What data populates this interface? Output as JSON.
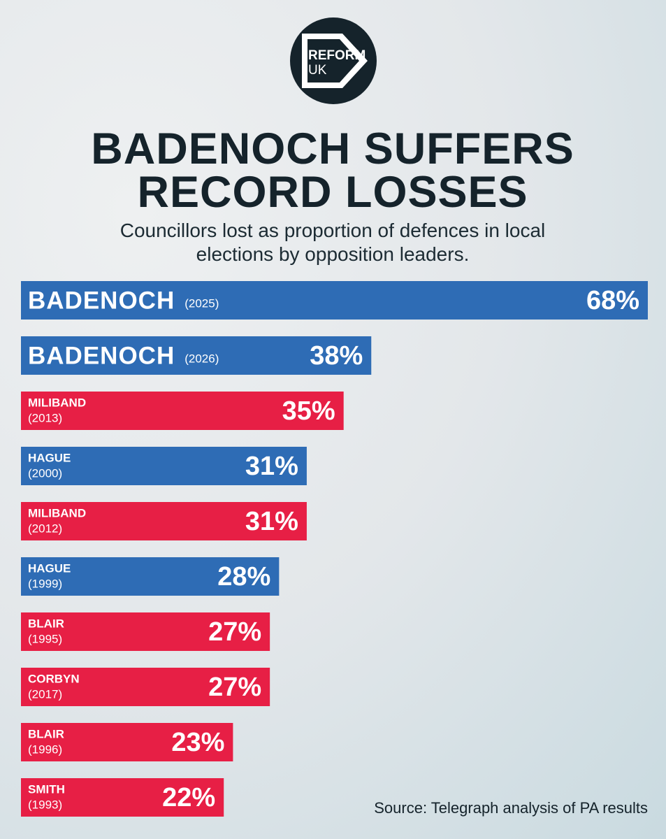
{
  "logo": {
    "line1": "REFORM",
    "line2": "UK"
  },
  "chart_data": {
    "type": "bar",
    "orientation": "horizontal",
    "title": "BADENOCH SUFFERS RECORD LOSSES",
    "subtitle": "Councillors lost as proportion of defences in local elections by opposition leaders.",
    "categories": [
      "BADENOCH",
      "BADENOCH",
      "MILIBAND",
      "HAGUE",
      "MILIBAND",
      "HAGUE",
      "BLAIR",
      "CORBYN",
      "BLAIR",
      "SMITH"
    ],
    "years": [
      "(2025)",
      "(2026)",
      "(2013)",
      "(2000)",
      "(2012)",
      "(1999)",
      "(1995)",
      "(2017)",
      "(1996)",
      "(1993)"
    ],
    "values": [
      68,
      38,
      35,
      31,
      31,
      28,
      27,
      27,
      23,
      22
    ],
    "value_labels": [
      "68%",
      "38%",
      "35%",
      "31%",
      "31%",
      "28%",
      "27%",
      "27%",
      "23%",
      "22%"
    ],
    "colors": [
      "#2e6cb5",
      "#2e6cb5",
      "#e71f45",
      "#2e6cb5",
      "#e71f45",
      "#2e6cb5",
      "#e71f45",
      "#e71f45",
      "#e71f45",
      "#e71f45"
    ],
    "xlim": [
      0,
      68
    ],
    "source": "Source: Telegraph analysis of PA results"
  }
}
